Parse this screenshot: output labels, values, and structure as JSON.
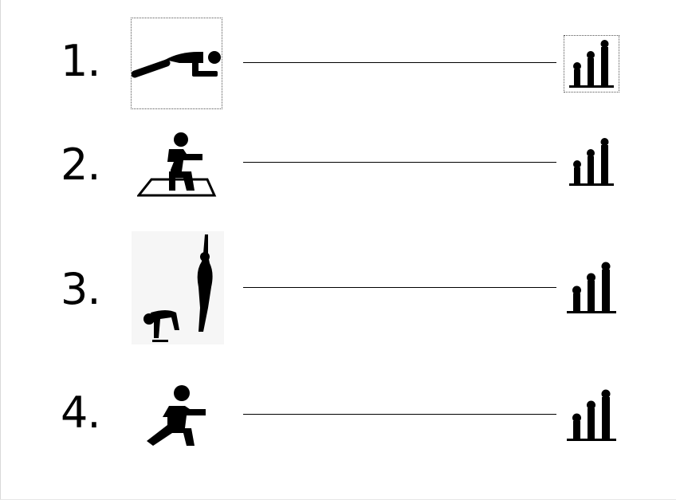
{
  "exercises": [
    {
      "number": "1.",
      "icon": "plank-icon",
      "level": "level-icon"
    },
    {
      "number": "2.",
      "icon": "squat-icon",
      "level": "level-icon"
    },
    {
      "number": "3.",
      "icon": "burpee-jump-icon",
      "level": "level-icon"
    },
    {
      "number": "4.",
      "icon": "lunge-icon",
      "level": "level-icon"
    }
  ],
  "colors": {
    "ink": "#000000",
    "background": "#ffffff"
  }
}
